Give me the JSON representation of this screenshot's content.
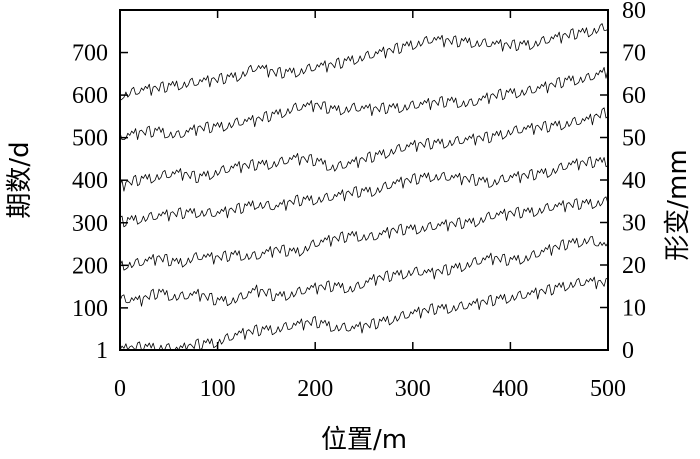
{
  "chart_data": {
    "type": "line",
    "xlabel": "位置/m",
    "ylabel_left": "期数/d",
    "ylabel_right": "形变/mm",
    "xlim": [
      0,
      500
    ],
    "ylim_left": [
      1,
      800
    ],
    "ylim_right": [
      0,
      80
    ],
    "x_ticks": [
      "0",
      "100",
      "200",
      "300",
      "400",
      "500"
    ],
    "y_left_ticks": [
      "1",
      "100",
      "200",
      "300",
      "400",
      "500",
      "600",
      "700"
    ],
    "y_right_ticks": [
      "0",
      "10",
      "20",
      "30",
      "40",
      "50",
      "60",
      "70",
      "80"
    ],
    "grid": false,
    "x_step": 2,
    "noise": [
      0.0,
      0.8,
      -0.6,
      1.2,
      -0.9,
      0.5,
      -1.3,
      0.9,
      0.2,
      -0.7,
      1.4,
      -0.4,
      0.7,
      -1.1,
      0.3,
      1.0,
      -0.5,
      -1.2,
      0.8,
      0.1,
      -0.8,
      1.3,
      -0.2,
      0.6,
      -1.0,
      1.1,
      -0.6,
      0.4,
      -1.4,
      0.9
    ],
    "series": [
      {
        "y": [
          [
            0,
            0
          ],
          [
            20,
            0.5
          ],
          [
            40,
            0.8
          ],
          [
            60,
            0
          ],
          [
            80,
            1.2
          ],
          [
            100,
            2.0
          ],
          [
            120,
            3.5
          ],
          [
            140,
            4.5
          ],
          [
            160,
            5.0
          ],
          [
            180,
            5.8
          ],
          [
            200,
            6.5
          ],
          [
            220,
            5.5
          ],
          [
            240,
            5.0
          ],
          [
            260,
            6.0
          ],
          [
            280,
            7.5
          ],
          [
            300,
            8.5
          ],
          [
            320,
            9.5
          ],
          [
            340,
            10.0
          ],
          [
            360,
            10.5
          ],
          [
            380,
            11.5
          ],
          [
            400,
            12.5
          ],
          [
            420,
            13.0
          ],
          [
            440,
            14.0
          ],
          [
            460,
            15.5
          ],
          [
            480,
            16.0
          ],
          [
            500,
            15.5
          ]
        ]
      },
      {
        "y": [
          [
            0,
            12.0
          ],
          [
            20,
            11.5
          ],
          [
            40,
            13.5
          ],
          [
            60,
            12.5
          ],
          [
            80,
            13.0
          ],
          [
            100,
            11.5
          ],
          [
            120,
            12.0
          ],
          [
            140,
            14.0
          ],
          [
            160,
            12.5
          ],
          [
            180,
            13.5
          ],
          [
            200,
            14.5
          ],
          [
            220,
            15.0
          ],
          [
            240,
            14.5
          ],
          [
            260,
            16.5
          ],
          [
            280,
            17.5
          ],
          [
            300,
            18.5
          ],
          [
            320,
            18.0
          ],
          [
            340,
            19.0
          ],
          [
            360,
            20.5
          ],
          [
            380,
            21.5
          ],
          [
            400,
            21.0
          ],
          [
            420,
            22.0
          ],
          [
            440,
            23.5
          ],
          [
            460,
            25.0
          ],
          [
            480,
            26.0
          ],
          [
            500,
            24.0
          ]
        ]
      },
      {
        "y": [
          [
            0,
            20.0
          ],
          [
            20,
            20.5
          ],
          [
            40,
            21.5
          ],
          [
            60,
            20.5
          ],
          [
            80,
            22.0
          ],
          [
            100,
            21.5
          ],
          [
            120,
            22.5
          ],
          [
            140,
            22.0
          ],
          [
            160,
            23.5
          ],
          [
            180,
            23.0
          ],
          [
            200,
            25.0
          ],
          [
            220,
            26.0
          ],
          [
            240,
            27.0
          ],
          [
            260,
            26.5
          ],
          [
            280,
            28.0
          ],
          [
            300,
            28.5
          ],
          [
            320,
            29.0
          ],
          [
            340,
            29.5
          ],
          [
            360,
            30.0
          ],
          [
            380,
            31.5
          ],
          [
            400,
            32.0
          ],
          [
            420,
            32.5
          ],
          [
            440,
            33.5
          ],
          [
            460,
            34.0
          ],
          [
            480,
            34.5
          ],
          [
            500,
            35.0
          ]
        ]
      },
      {
        "y": [
          [
            0,
            30.0
          ],
          [
            20,
            31.0
          ],
          [
            40,
            31.5
          ],
          [
            60,
            32.0
          ],
          [
            80,
            32.5
          ],
          [
            100,
            32.0
          ],
          [
            120,
            33.0
          ],
          [
            140,
            34.5
          ],
          [
            160,
            33.5
          ],
          [
            180,
            35.0
          ],
          [
            200,
            35.5
          ],
          [
            220,
            36.0
          ],
          [
            240,
            37.0
          ],
          [
            260,
            37.5
          ],
          [
            280,
            39.0
          ],
          [
            300,
            40.0
          ],
          [
            320,
            41.0
          ],
          [
            340,
            40.5
          ],
          [
            360,
            40.0
          ],
          [
            380,
            39.5
          ],
          [
            400,
            40.5
          ],
          [
            420,
            41.0
          ],
          [
            440,
            42.0
          ],
          [
            460,
            43.5
          ],
          [
            480,
            44.0
          ],
          [
            500,
            44.5
          ]
        ]
      },
      {
        "y": [
          [
            0,
            38.5
          ],
          [
            20,
            40.0
          ],
          [
            40,
            41.0
          ],
          [
            60,
            41.5
          ],
          [
            80,
            40.5
          ],
          [
            100,
            42.0
          ],
          [
            120,
            43.0
          ],
          [
            140,
            43.5
          ],
          [
            160,
            44.0
          ],
          [
            180,
            45.0
          ],
          [
            200,
            44.5
          ],
          [
            220,
            43.0
          ],
          [
            240,
            44.0
          ],
          [
            260,
            45.5
          ],
          [
            280,
            47.0
          ],
          [
            300,
            48.0
          ],
          [
            320,
            48.5
          ],
          [
            340,
            49.0
          ],
          [
            360,
            49.5
          ],
          [
            380,
            50.0
          ],
          [
            400,
            51.5
          ],
          [
            420,
            52.0
          ],
          [
            440,
            52.5
          ],
          [
            460,
            53.5
          ],
          [
            480,
            54.0
          ],
          [
            500,
            56.0
          ]
        ]
      },
      {
        "y": [
          [
            0,
            50.0
          ],
          [
            20,
            51.0
          ],
          [
            40,
            51.5
          ],
          [
            60,
            50.5
          ],
          [
            80,
            52.0
          ],
          [
            100,
            52.5
          ],
          [
            120,
            53.5
          ],
          [
            140,
            54.0
          ],
          [
            160,
            55.5
          ],
          [
            180,
            57.0
          ],
          [
            200,
            57.5
          ],
          [
            220,
            56.5
          ],
          [
            240,
            57.0
          ],
          [
            260,
            56.5
          ],
          [
            280,
            57.0
          ],
          [
            300,
            57.5
          ],
          [
            320,
            58.0
          ],
          [
            340,
            58.5
          ],
          [
            360,
            58.0
          ],
          [
            380,
            59.5
          ],
          [
            400,
            60.5
          ],
          [
            420,
            61.0
          ],
          [
            440,
            62.0
          ],
          [
            460,
            63.5
          ],
          [
            480,
            64.0
          ],
          [
            500,
            65.5
          ]
        ]
      },
      {
        "y": [
          [
            0,
            60.0
          ],
          [
            20,
            61.0
          ],
          [
            40,
            61.5
          ],
          [
            60,
            62.5
          ],
          [
            80,
            63.0
          ],
          [
            100,
            63.5
          ],
          [
            120,
            64.5
          ],
          [
            140,
            66.5
          ],
          [
            160,
            65.0
          ],
          [
            180,
            65.5
          ],
          [
            200,
            66.5
          ],
          [
            220,
            67.0
          ],
          [
            240,
            68.5
          ],
          [
            260,
            69.5
          ],
          [
            280,
            70.5
          ],
          [
            300,
            72.0
          ],
          [
            320,
            73.0
          ],
          [
            340,
            72.5
          ],
          [
            360,
            72.5
          ],
          [
            380,
            72.0
          ],
          [
            400,
            71.5
          ],
          [
            420,
            72.0
          ],
          [
            440,
            73.0
          ],
          [
            460,
            74.0
          ],
          [
            480,
            75.0
          ],
          [
            500,
            76.0
          ]
        ]
      }
    ]
  }
}
